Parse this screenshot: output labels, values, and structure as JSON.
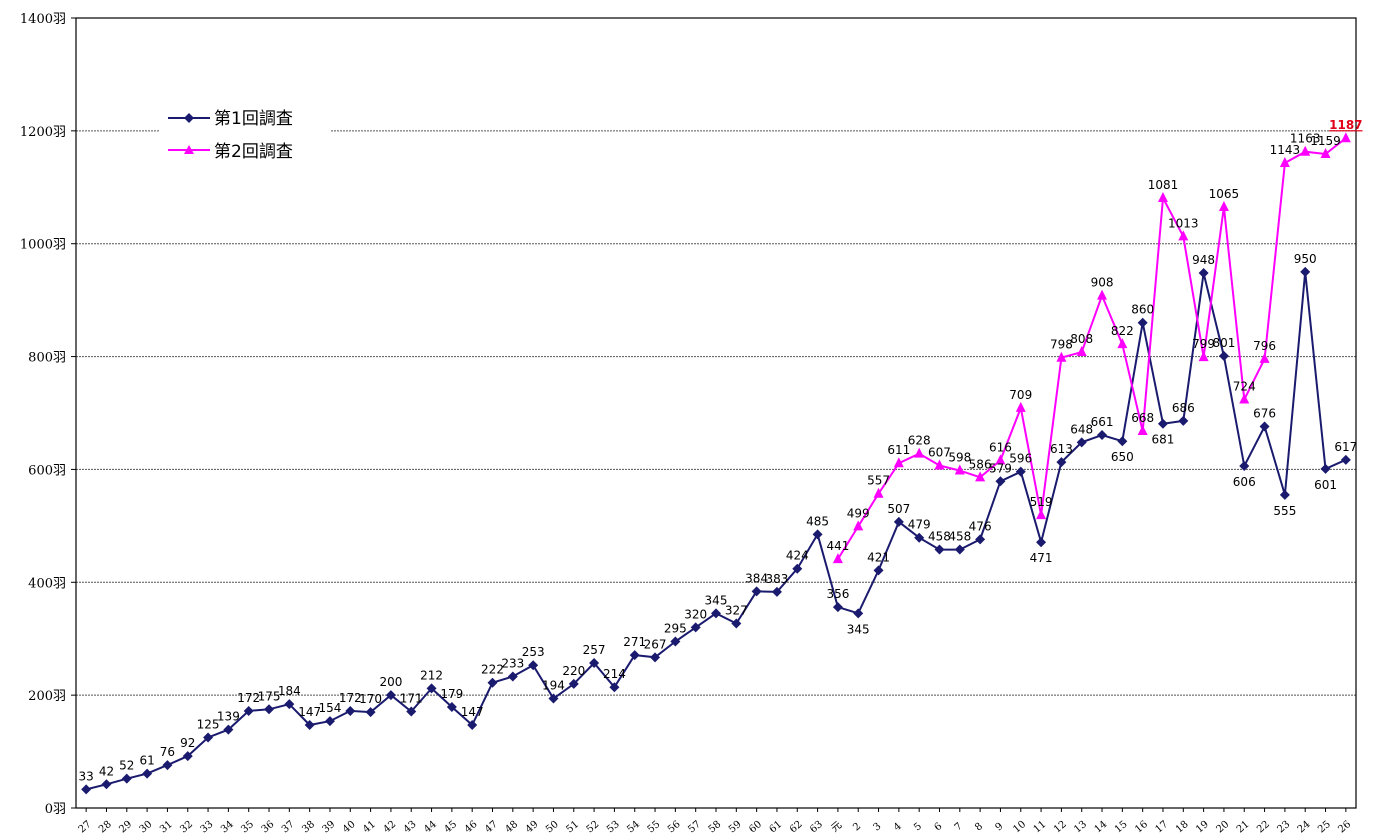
{
  "chart_data": {
    "type": "line",
    "y_unit_suffix": "羽",
    "ylim": [
      0,
      1400
    ],
    "y_ticks": [
      0,
      200,
      400,
      600,
      800,
      1000,
      1200,
      1400
    ],
    "grid": true,
    "legend_position": "top-left",
    "categories": [
      "27",
      "28",
      "29",
      "30",
      "31",
      "32",
      "33",
      "34",
      "35",
      "36",
      "37",
      "38",
      "39",
      "40",
      "41",
      "42",
      "43",
      "44",
      "45",
      "46",
      "47",
      "48",
      "49",
      "50",
      "51",
      "52",
      "53",
      "54",
      "55",
      "56",
      "57",
      "58",
      "59",
      "60",
      "61",
      "62",
      "63",
      "元",
      "2",
      "3",
      "4",
      "5",
      "6",
      "7",
      "8",
      "9",
      "10",
      "11",
      "12",
      "13",
      "14",
      "15",
      "16",
      "17",
      "18",
      "19",
      "20",
      "21",
      "22",
      "23",
      "24",
      "25",
      "26"
    ],
    "series": [
      {
        "name": "第1回調査",
        "color": "#1a1a6e",
        "marker": "diamond",
        "values": [
          33,
          42,
          52,
          61,
          76,
          92,
          125,
          139,
          172,
          175,
          184,
          147,
          154,
          172,
          170,
          200,
          171,
          212,
          179,
          147,
          222,
          233,
          253,
          194,
          220,
          257,
          214,
          271,
          267,
          295,
          320,
          345,
          327,
          384,
          383,
          424,
          485,
          356,
          345,
          421,
          507,
          479,
          458,
          458,
          476,
          579,
          596,
          471,
          613,
          648,
          661,
          650,
          860,
          681,
          686,
          948,
          801,
          606,
          676,
          555,
          950,
          601,
          617
        ]
      },
      {
        "name": "第2回調査",
        "color": "#ff00ff",
        "marker": "triangle",
        "values": [
          null,
          null,
          null,
          null,
          null,
          null,
          null,
          null,
          null,
          null,
          null,
          null,
          null,
          null,
          null,
          null,
          null,
          null,
          null,
          null,
          null,
          null,
          null,
          null,
          null,
          null,
          null,
          null,
          null,
          null,
          null,
          null,
          null,
          null,
          null,
          null,
          null,
          441,
          499,
          557,
          611,
          628,
          607,
          598,
          586,
          616,
          709,
          519,
          798,
          808,
          908,
          822,
          668,
          1081,
          1013,
          799,
          1065,
          724,
          796,
          1143,
          1163,
          1159,
          1187
        ],
        "highlight_last": "#e0001a"
      }
    ]
  }
}
